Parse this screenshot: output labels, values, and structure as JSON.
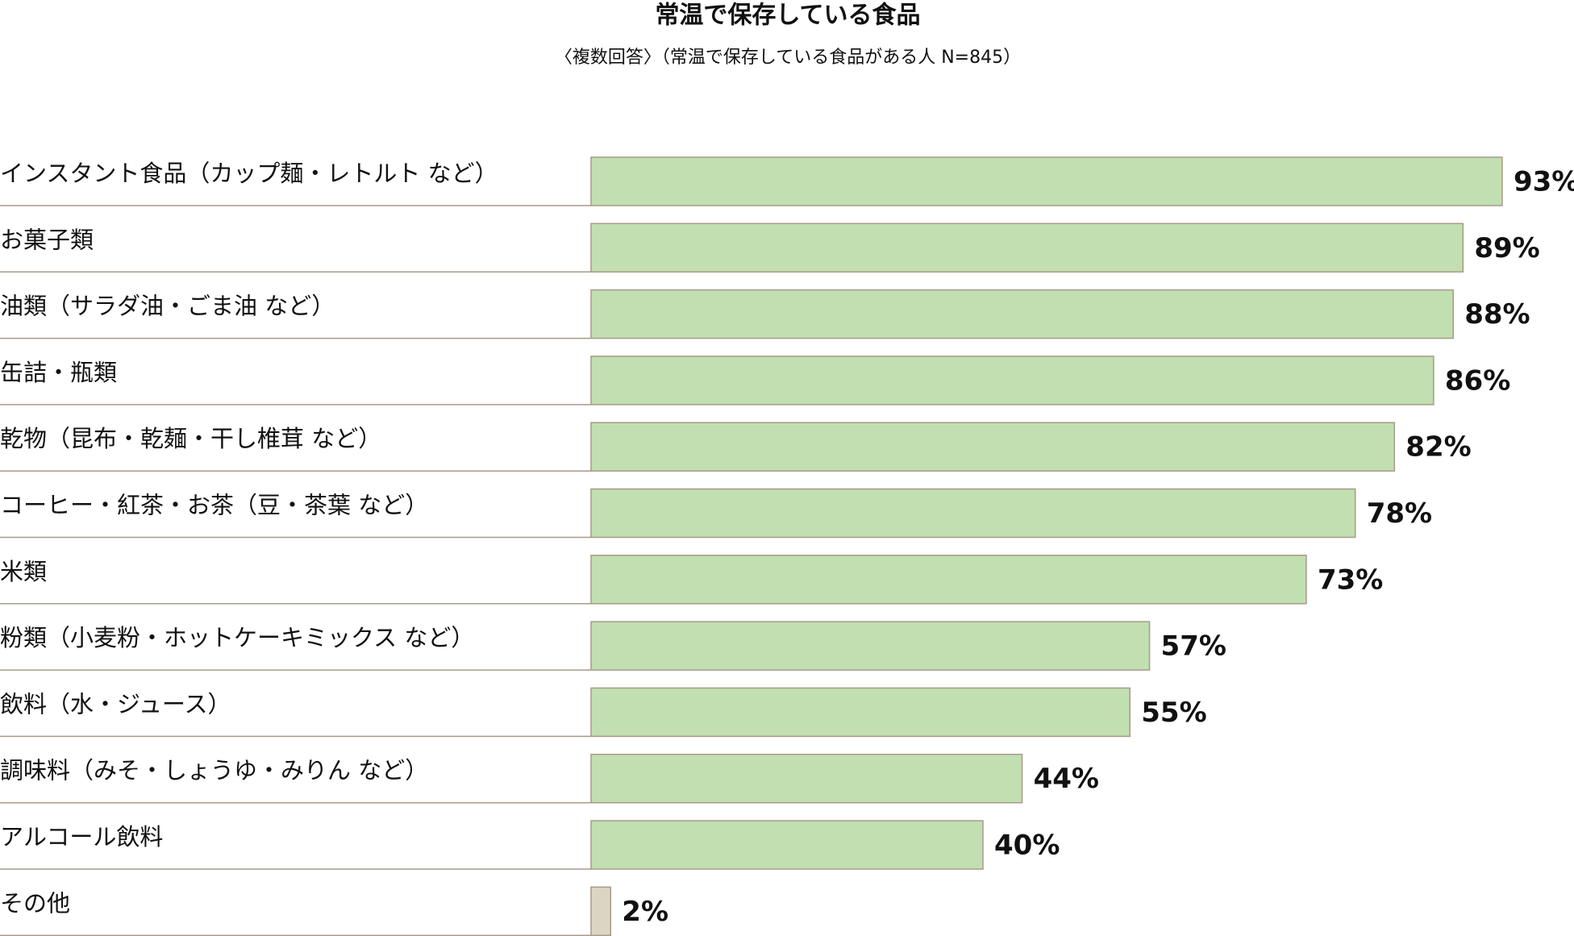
{
  "chart_data": {
    "type": "hbar",
    "title": "常温で保存している食品",
    "subtitle": "〈複数回答〉（常温で保存している食品がある人 N=845）",
    "categories": [
      "インスタント食品（カップ麺・レトルト など）",
      "お菓子類",
      "油類（サラダ油・ごま油 など）",
      "缶詰・瓶類",
      "乾物（昆布・乾麺・干し椎茸 など）",
      "コーヒー・紅茶・お茶（豆・茶葉 など）",
      "米類",
      "粉類（小麦粉・ホットケーキミックス など）",
      "飲料（水・ジュース）",
      "調味料（みそ・しょうゆ・みりん など）",
      "アルコール飲料",
      "その他"
    ],
    "values": [
      93,
      89,
      88,
      86,
      82,
      78,
      73,
      57,
      55,
      44,
      40,
      2
    ],
    "value_labels": [
      "93%",
      "89%",
      "88%",
      "86%",
      "82%",
      "78%",
      "73%",
      "57%",
      "55%",
      "44%",
      "40%",
      "2%"
    ],
    "colors": [
      "#c1dfb0",
      "#c1dfb0",
      "#c1dfb0",
      "#c1dfb0",
      "#c1dfb0",
      "#c1dfb0",
      "#c1dfb0",
      "#c1dfb0",
      "#c1dfb0",
      "#c1dfb0",
      "#c1dfb0",
      "#ddd5c3"
    ]
  }
}
